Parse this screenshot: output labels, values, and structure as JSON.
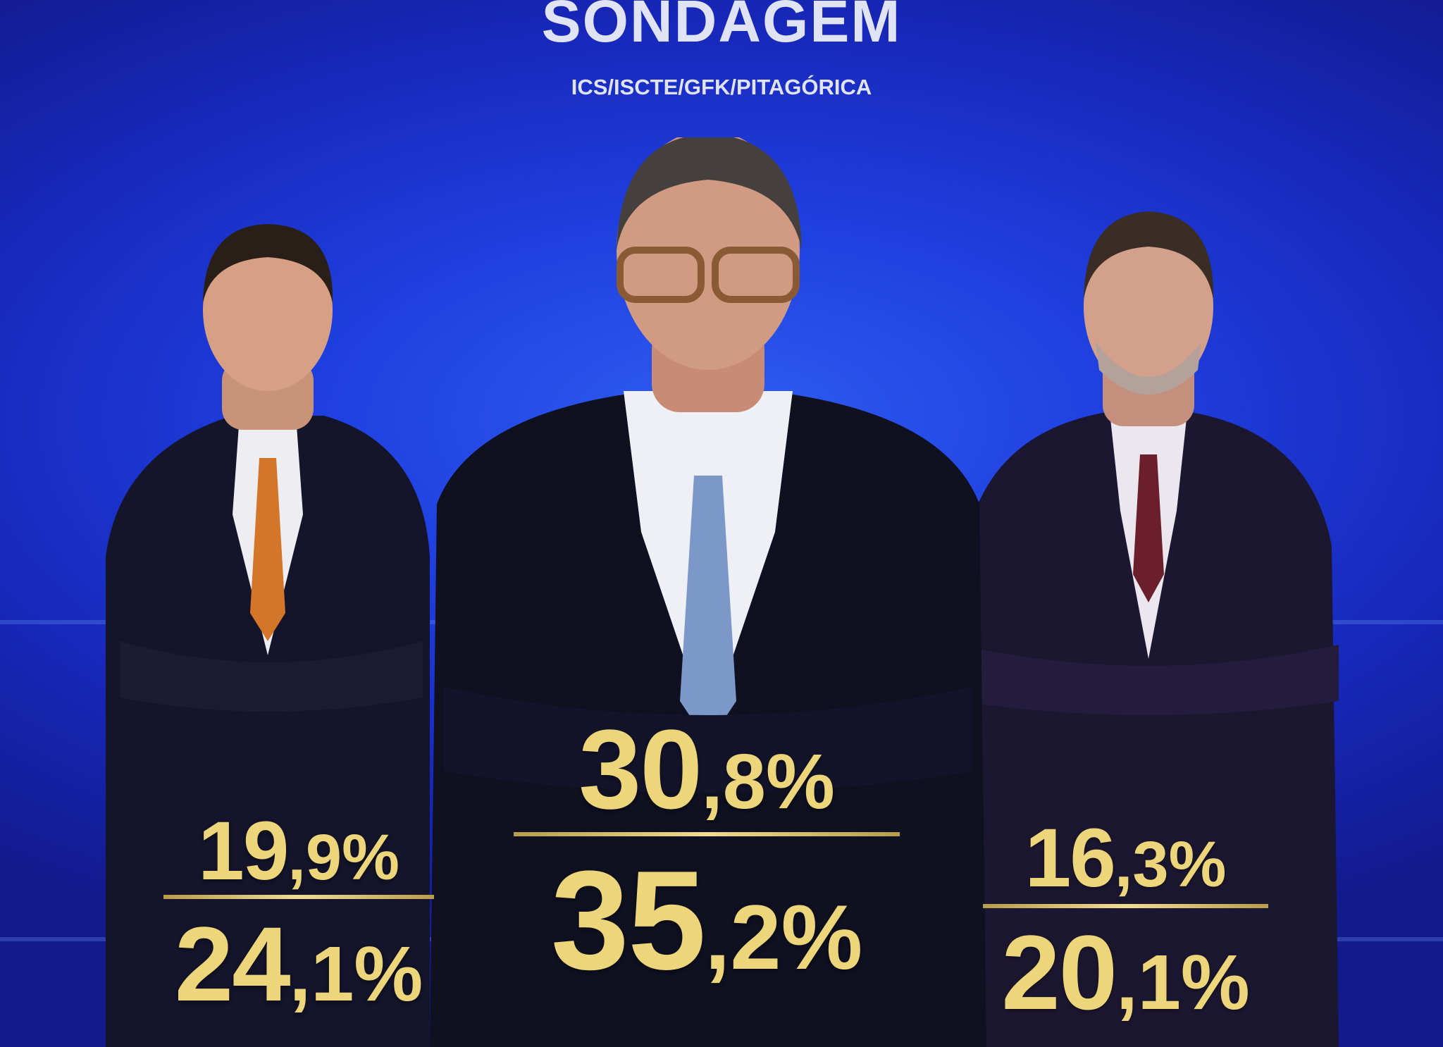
{
  "header": {
    "title": "SONDAGEM",
    "source": "ICS/ISCTE/GFK/PITAGÓRICA"
  },
  "colors": {
    "background": "#1f3fe0",
    "numbers": "#ecd57a",
    "text": "#dfe3f4"
  },
  "candidates": [
    {
      "position": "left",
      "top": {
        "int": "19",
        "dec": ",9%"
      },
      "bottom": {
        "int": "24",
        "dec": ",1%"
      }
    },
    {
      "position": "center",
      "top": {
        "int": "30",
        "dec": ",8%"
      },
      "bottom": {
        "int": "35",
        "dec": ",2%"
      }
    },
    {
      "position": "right",
      "top": {
        "int": "16",
        "dec": ",3%"
      },
      "bottom": {
        "int": "20",
        "dec": ",1%"
      }
    }
  ]
}
